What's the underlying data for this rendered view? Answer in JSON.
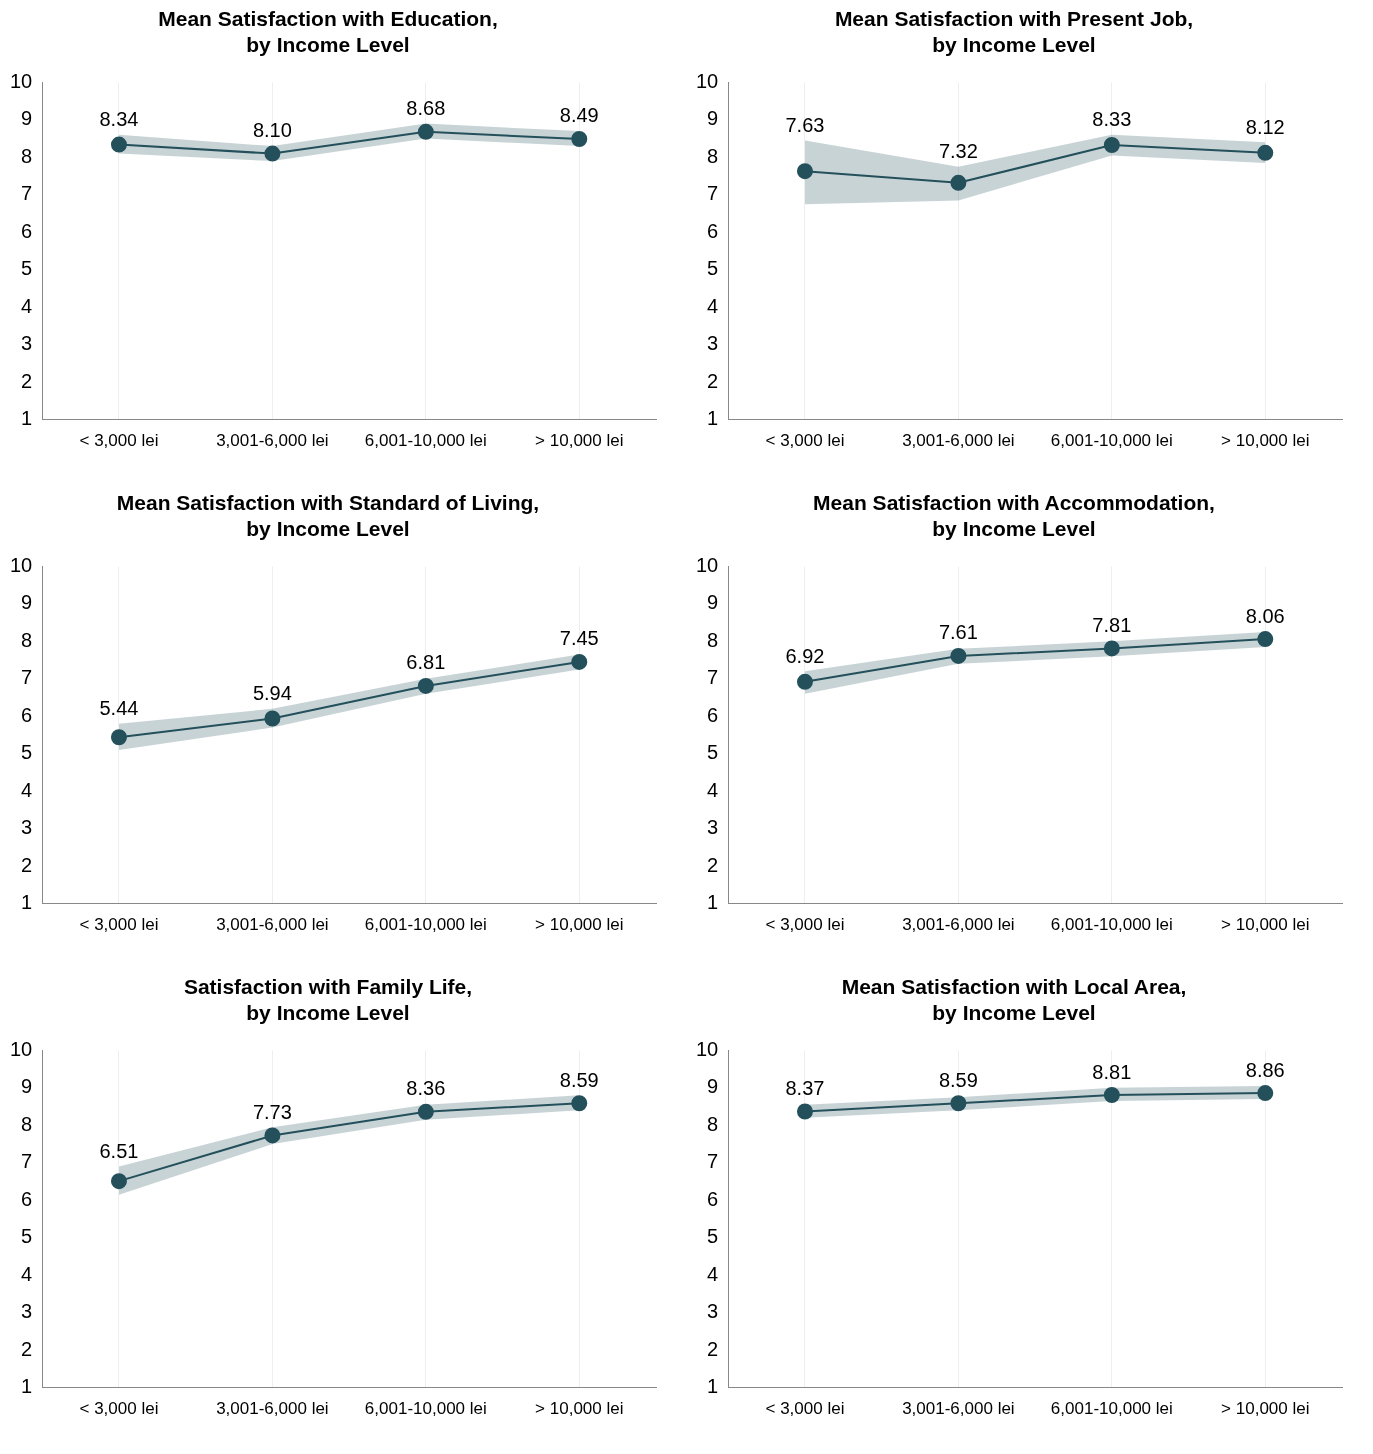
{
  "chart_data": [
    {
      "type": "line",
      "title": "Mean Satisfaction with Education,\nby Income Level",
      "categories": [
        "< 3,000 lei",
        "3,001-6,000 lei",
        "6,001-10,000 lei",
        "> 10,000 lei"
      ],
      "ylim": [
        1,
        10
      ],
      "yticks": [
        1,
        2,
        3,
        4,
        5,
        6,
        7,
        8,
        9,
        10
      ],
      "grid": "x",
      "marker": "circle",
      "legend": false,
      "series": [
        {
          "color": "#24505b",
          "values": [
            8.34,
            8.1,
            8.68,
            8.49
          ],
          "lower": [
            8.1,
            7.9,
            8.5,
            8.3
          ],
          "upper": [
            8.6,
            8.3,
            8.9,
            8.7
          ],
          "value_labels": [
            "8.34",
            "8.10",
            "8.68",
            "8.49"
          ]
        }
      ]
    },
    {
      "type": "line",
      "title": "Mean Satisfaction with Present Job,\nby Income Level",
      "categories": [
        "< 3,000 lei",
        "3,001-6,000 lei",
        "6,001-10,000 lei",
        "> 10,000 lei"
      ],
      "ylim": [
        1,
        10
      ],
      "yticks": [
        1,
        2,
        3,
        4,
        5,
        6,
        7,
        8,
        9,
        10
      ],
      "grid": "x",
      "marker": "circle",
      "legend": false,
      "series": [
        {
          "color": "#24505b",
          "values": [
            7.63,
            7.32,
            8.33,
            8.12
          ],
          "lower": [
            6.75,
            6.85,
            8.05,
            7.85
          ],
          "upper": [
            8.45,
            7.75,
            8.6,
            8.4
          ],
          "value_labels": [
            "7.63",
            "7.32",
            "8.33",
            "8.12"
          ]
        }
      ]
    },
    {
      "type": "line",
      "title": "Mean Satisfaction with Standard of Living,\nby Income Level",
      "categories": [
        "< 3,000 lei",
        "3,001-6,000 lei",
        "6,001-10,000 lei",
        "> 10,000 lei"
      ],
      "ylim": [
        1,
        10
      ],
      "yticks": [
        1,
        2,
        3,
        4,
        5,
        6,
        7,
        8,
        9,
        10
      ],
      "grid": "x",
      "marker": "circle",
      "legend": false,
      "series": [
        {
          "color": "#24505b",
          "values": [
            5.44,
            5.94,
            6.81,
            7.45
          ],
          "lower": [
            5.1,
            5.7,
            6.6,
            7.25
          ],
          "upper": [
            5.8,
            6.2,
            7.0,
            7.65
          ],
          "value_labels": [
            "5.44",
            "5.94",
            "6.81",
            "7.45"
          ]
        }
      ]
    },
    {
      "type": "line",
      "title": "Mean Satisfaction with Accommodation,\nby Income Level",
      "categories": [
        "< 3,000 lei",
        "3,001-6,000 lei",
        "6,001-10,000 lei",
        "> 10,000 lei"
      ],
      "ylim": [
        1,
        10
      ],
      "yticks": [
        1,
        2,
        3,
        4,
        5,
        6,
        7,
        8,
        9,
        10
      ],
      "grid": "x",
      "marker": "circle",
      "legend": false,
      "series": [
        {
          "color": "#24505b",
          "values": [
            6.92,
            7.61,
            7.81,
            8.06
          ],
          "lower": [
            6.6,
            7.4,
            7.6,
            7.85
          ],
          "upper": [
            7.2,
            7.8,
            8.0,
            8.25
          ],
          "value_labels": [
            "6.92",
            "7.61",
            "7.81",
            "8.06"
          ]
        }
      ]
    },
    {
      "type": "line",
      "title": "Satisfaction with Family Life,\nby Income Level",
      "categories": [
        "< 3,000 lei",
        "3,001-6,000 lei",
        "6,001-10,000 lei",
        "> 10,000 lei"
      ],
      "ylim": [
        1,
        10
      ],
      "yticks": [
        1,
        2,
        3,
        4,
        5,
        6,
        7,
        8,
        9,
        10
      ],
      "grid": "x",
      "marker": "circle",
      "legend": false,
      "series": [
        {
          "color": "#24505b",
          "values": [
            6.51,
            7.73,
            8.36,
            8.59
          ],
          "lower": [
            6.15,
            7.5,
            8.15,
            8.4
          ],
          "upper": [
            6.9,
            7.95,
            8.55,
            8.8
          ],
          "value_labels": [
            "6.51",
            "7.73",
            "8.36",
            "8.59"
          ]
        }
      ]
    },
    {
      "type": "line",
      "title": "Mean Satisfaction with Local Area,\nby Income Level",
      "categories": [
        "< 3,000 lei",
        "3,001-6,000 lei",
        "6,001-10,000 lei",
        "> 10,000 lei"
      ],
      "ylim": [
        1,
        10
      ],
      "yticks": [
        1,
        2,
        3,
        4,
        5,
        6,
        7,
        8,
        9,
        10
      ],
      "grid": "x",
      "marker": "circle",
      "legend": false,
      "series": [
        {
          "color": "#24505b",
          "values": [
            8.37,
            8.59,
            8.81,
            8.86
          ],
          "lower": [
            8.2,
            8.4,
            8.65,
            8.7
          ],
          "upper": [
            8.55,
            8.75,
            9.0,
            9.05
          ],
          "value_labels": [
            "8.37",
            "8.59",
            "8.81",
            "8.86"
          ]
        }
      ]
    }
  ]
}
